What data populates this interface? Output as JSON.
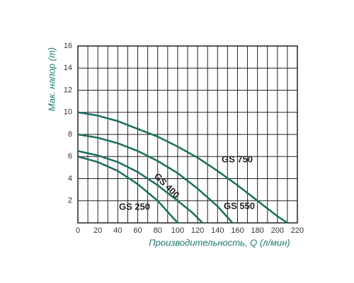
{
  "chart_data": {
    "type": "line",
    "xlabel": "Производительность, Q (л/мин)",
    "ylabel": "Мак. напор (m)",
    "xlim": [
      0,
      220
    ],
    "xticks": [
      0,
      20,
      40,
      60,
      80,
      100,
      120,
      140,
      160,
      180,
      200,
      220
    ],
    "ylim": [
      0,
      16
    ],
    "yticks": [
      2,
      4,
      6,
      8,
      10,
      12,
      14,
      16
    ],
    "grid": true,
    "series": [
      {
        "name": "GS 750",
        "color": "#1b6e5f",
        "x": [
          0,
          20,
          40,
          60,
          80,
          100,
          120,
          140,
          160,
          180,
          200,
          210
        ],
        "values": [
          10,
          9.7,
          9.2,
          8.5,
          7.8,
          6.9,
          5.9,
          4.7,
          3.4,
          2.0,
          0.6,
          0
        ]
      },
      {
        "name": "GS 550",
        "color": "#1b6e5f",
        "x": [
          0,
          20,
          40,
          60,
          80,
          100,
          120,
          140,
          155
        ],
        "values": [
          8,
          7.7,
          7.2,
          6.5,
          5.6,
          4.5,
          3.1,
          1.5,
          0
        ]
      },
      {
        "name": "GS 400",
        "color": "#1b6e5f",
        "x": [
          0,
          20,
          40,
          60,
          80,
          100,
          115,
          125
        ],
        "values": [
          6.5,
          6.1,
          5.5,
          4.6,
          3.4,
          2.0,
          0.9,
          0
        ]
      },
      {
        "name": "GS 250",
        "color": "#1b6e5f",
        "x": [
          0,
          20,
          40,
          60,
          80,
          100
        ],
        "values": [
          6,
          5.5,
          4.7,
          3.5,
          2.0,
          0
        ]
      }
    ]
  }
}
